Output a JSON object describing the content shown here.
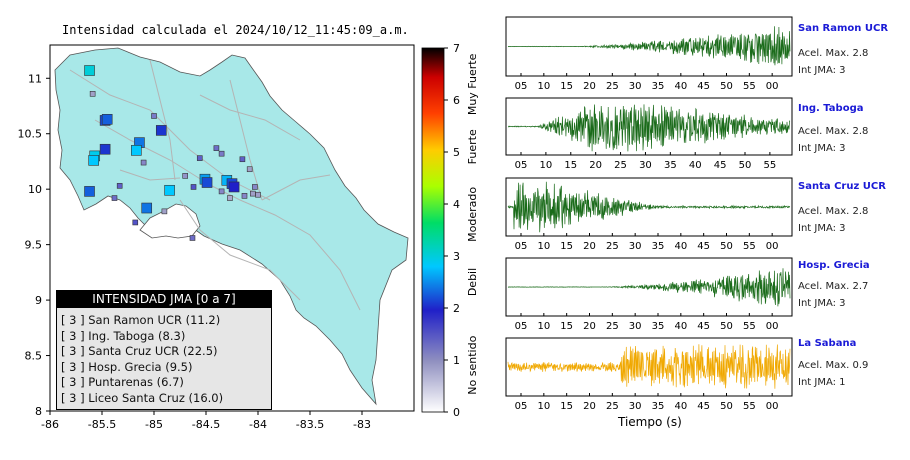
{
  "map": {
    "title": "Intensidad calculada el 2024/10/12_11:45:09_a.m.",
    "x_ticks": [
      "-86",
      "-85.5",
      "-85",
      "-84.5",
      "-84",
      "-83.5",
      "-83"
    ],
    "y_ticks": [
      "11",
      "10.5",
      "10",
      "9.5",
      "9",
      "8.5",
      "8"
    ],
    "colors": {
      "land": "#a8e8e8",
      "roads": "#b4b4b4",
      "frame": "#000000"
    }
  },
  "legend": {
    "title": "INTENSIDAD JMA [0 a 7]",
    "items": [
      "[ 3 ]  San Ramon UCR (11.2)",
      "[ 3 ]  Ing. Taboga (8.3)",
      "[ 3 ]  Santa Cruz UCR (22.5)",
      "[ 3 ]  Hosp. Grecia (9.5)",
      "[ 3 ]  Puntarenas (6.7)",
      "[ 3 ]  Liceo Santa Cruz (16.0)"
    ]
  },
  "colorbar": {
    "ticks": [
      "7",
      "6",
      "5",
      "4",
      "3",
      "2",
      "1",
      "0"
    ],
    "labels": [
      "Muy Fuerte",
      "Fuerte",
      "Moderado",
      "Debil",
      "No sentido"
    ]
  },
  "traces": [
    {
      "name": "San Ramon UCR",
      "accel": "Acel. Max. 2.8",
      "jma": "Int JMA: 3",
      "color": "#1a6b1a"
    },
    {
      "name": "Ing. Taboga",
      "accel": "Acel. Max. 2.8",
      "jma": "Int JMA: 3",
      "color": "#1a6b1a"
    },
    {
      "name": "Santa Cruz UCR",
      "accel": "Acel. Max. 2.8",
      "jma": "Int JMA: 3",
      "color": "#1a6b1a"
    },
    {
      "name": "Hosp. Grecia",
      "accel": "Acel. Max. 2.7",
      "jma": "Int JMA: 3",
      "color": "#1a6b1a"
    },
    {
      "name": "La Sabana",
      "accel": "Acel. Max. 0.9",
      "jma": "Int JMA: 1",
      "color": "#f0a800"
    }
  ],
  "time_axis": {
    "label": "Tiempo (s)",
    "ticks_a": [
      "05",
      "10",
      "15",
      "20",
      "25",
      "30",
      "35",
      "40",
      "45",
      "50",
      "55",
      "00"
    ],
    "ticks_b": [
      "05",
      "10",
      "15",
      "20",
      "25",
      "30",
      "35",
      "40",
      "45",
      "50",
      "55"
    ],
    "ticks_c": [
      "05",
      "10",
      "15",
      "20",
      "25",
      "30",
      "35",
      "40",
      "45",
      "50",
      "55",
      "00"
    ]
  },
  "chart_data": {
    "type": "scatter",
    "xlim": [
      -86,
      -82.5
    ],
    "ylim": [
      8,
      11.3
    ],
    "stations": [
      {
        "lon": -85.62,
        "lat": 11.07,
        "jma": 3.0
      },
      {
        "lon": -85.47,
        "lat": 10.62,
        "jma": 2.2
      },
      {
        "lon": -85.45,
        "lat": 10.63,
        "jma": 2.3
      },
      {
        "lon": -85.57,
        "lat": 10.3,
        "jma": 2.9
      },
      {
        "lon": -85.58,
        "lat": 10.26,
        "jma": 2.8
      },
      {
        "lon": -85.47,
        "lat": 10.36,
        "jma": 2.1
      },
      {
        "lon": -85.62,
        "lat": 9.98,
        "jma": 2.3
      },
      {
        "lon": -85.14,
        "lat": 10.42,
        "jma": 2.4
      },
      {
        "lon": -85.17,
        "lat": 10.35,
        "jma": 2.8
      },
      {
        "lon": -84.93,
        "lat": 10.53,
        "jma": 2.1
      },
      {
        "lon": -84.85,
        "lat": 9.99,
        "jma": 2.8
      },
      {
        "lon": -85.07,
        "lat": 9.83,
        "jma": 2.4
      },
      {
        "lon": -84.51,
        "lat": 10.09,
        "jma": 2.6
      },
      {
        "lon": -84.49,
        "lat": 10.06,
        "jma": 2.2
      },
      {
        "lon": -84.3,
        "lat": 10.08,
        "jma": 2.7
      },
      {
        "lon": -84.25,
        "lat": 10.05,
        "jma": 2.2
      },
      {
        "lon": -84.23,
        "lat": 10.02,
        "jma": 2.0
      },
      {
        "lon": -84.03,
        "lat": 10.02,
        "jma": 1.2
      },
      {
        "lon": -84.05,
        "lat": 9.96,
        "jma": 1.0
      },
      {
        "lon": -84.13,
        "lat": 9.94,
        "jma": 1.2
      },
      {
        "lon": -84.4,
        "lat": 10.37,
        "jma": 1.4
      },
      {
        "lon": -84.56,
        "lat": 10.28,
        "jma": 1.5
      },
      {
        "lon": -84.08,
        "lat": 10.18,
        "jma": 1.0
      },
      {
        "lon": -84.15,
        "lat": 10.27,
        "jma": 1.5
      },
      {
        "lon": -84.35,
        "lat": 10.32,
        "jma": 1.3
      },
      {
        "lon": -85.33,
        "lat": 10.03,
        "jma": 1.5
      },
      {
        "lon": -85.38,
        "lat": 9.92,
        "jma": 1.4
      },
      {
        "lon": -84.63,
        "lat": 9.56,
        "jma": 1.4
      },
      {
        "lon": -84.35,
        "lat": 9.98,
        "jma": 1.2
      },
      {
        "lon": -84.0,
        "lat": 9.95,
        "jma": 1.0
      },
      {
        "lon": -84.7,
        "lat": 10.12,
        "jma": 1.1
      },
      {
        "lon": -84.62,
        "lat": 10.02,
        "jma": 1.6
      },
      {
        "lon": -85.1,
        "lat": 10.24,
        "jma": 1.2
      },
      {
        "lon": -85.0,
        "lat": 10.66,
        "jma": 1.3
      },
      {
        "lon": -85.18,
        "lat": 9.7,
        "jma": 1.6
      },
      {
        "lon": -84.9,
        "lat": 9.8,
        "jma": 1.0
      },
      {
        "lon": -85.59,
        "lat": 10.86,
        "jma": 1.0
      },
      {
        "lon": -84.27,
        "lat": 9.92,
        "jma": 0.9
      }
    ],
    "colorscale_max": 7
  }
}
